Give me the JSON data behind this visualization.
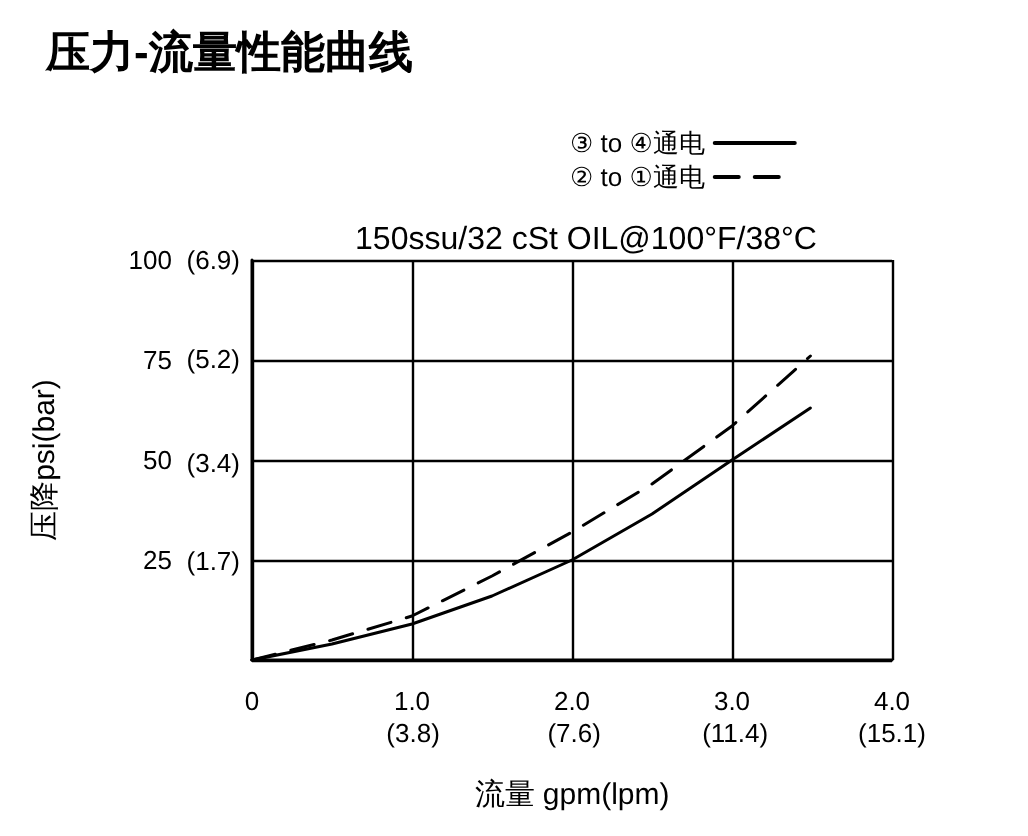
{
  "chart_data": {
    "type": "line",
    "title": "压力-流量性能曲线",
    "subtitle": "150ssu/32 cSt OIL@100°F/38°C",
    "xlabel": "流量 gpm(lpm)",
    "ylabel": "压降psi(bar)",
    "xlim": [
      0,
      4
    ],
    "xticks": [
      0,
      {
        "value": 1,
        "label": "1.0"
      },
      {
        "value": 2,
        "label": "2.0"
      },
      {
        "value": 3,
        "label": "3.0"
      },
      {
        "value": 4,
        "label": "4.0"
      }
    ],
    "x2lim": [
      0,
      15.1
    ],
    "x2ticks": [
      {
        "value": 3.8,
        "label": "(3.8)"
      },
      {
        "value": 7.6,
        "label": "(7.6)"
      },
      {
        "value": 11.4,
        "label": "(11.4)"
      },
      {
        "value": 15.1,
        "label": "(15.1)"
      }
    ],
    "ylim": [
      0,
      100
    ],
    "yticks": [
      {
        "value": 0,
        "label": null
      },
      25,
      50,
      75,
      100
    ],
    "y2lim": [
      0,
      6.9
    ],
    "y2ticks": [
      {
        "value": 1.7,
        "label": "(1.7)"
      },
      {
        "value": 3.4,
        "label": "(3.4)"
      },
      {
        "value": 5.2,
        "label": "(5.2)"
      },
      {
        "value": 6.9,
        "label": "(6.9)"
      }
    ],
    "x": [
      0,
      0.5,
      1,
      1.5,
      2,
      2.5,
      3,
      3.49
    ],
    "series": [
      {
        "name": "③ to ④通电",
        "color": "#000000",
        "line_style": "solid",
        "values": [
          0,
          4,
          9,
          16,
          25,
          36.5,
          50,
          63
        ]
      },
      {
        "name": "② to ①通电",
        "color": "#000000",
        "line_style": "dashed",
        "values": [
          0,
          5,
          11,
          21,
          32,
          44,
          58.5,
          76
        ]
      }
    ],
    "grid": true,
    "legend": "top",
    "marker": "none"
  }
}
